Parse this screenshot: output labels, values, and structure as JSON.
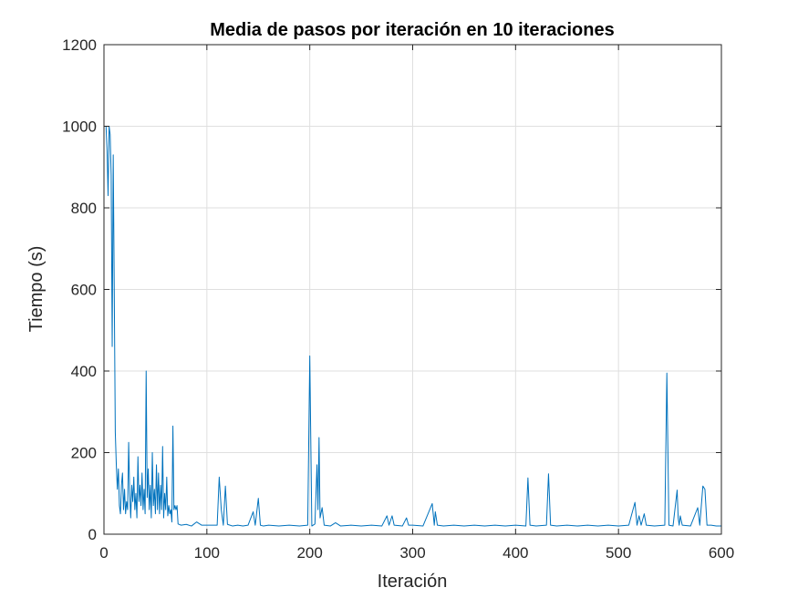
{
  "chart_data": {
    "type": "line",
    "title": "Media de pasos por iteración en 10 iteraciones",
    "xlabel": "Iteración",
    "ylabel": "Tiempo (s)",
    "xlim": [
      0,
      600
    ],
    "ylim": [
      0,
      1200
    ],
    "xticks": [
      "0",
      "100",
      "200",
      "300",
      "400",
      "500",
      "600"
    ],
    "yticks": [
      "0",
      "200",
      "400",
      "600",
      "800",
      "1000",
      "1200"
    ],
    "grid": true,
    "line_color": "#0072bd",
    "series": [
      {
        "points": [
          [
            1,
            1000
          ],
          [
            2,
            1000
          ],
          [
            3,
            940
          ],
          [
            4,
            830
          ],
          [
            5,
            1000
          ],
          [
            6,
            980
          ],
          [
            7,
            880
          ],
          [
            8,
            460
          ],
          [
            9,
            930
          ],
          [
            10,
            600
          ],
          [
            11,
            250
          ],
          [
            12,
            170
          ],
          [
            13,
            110
          ],
          [
            14,
            160
          ],
          [
            15,
            70
          ],
          [
            16,
            50
          ],
          [
            17,
            120
          ],
          [
            18,
            150
          ],
          [
            19,
            60
          ],
          [
            20,
            110
          ],
          [
            21,
            50
          ],
          [
            22,
            80
          ],
          [
            23,
            60
          ],
          [
            24,
            225
          ],
          [
            25,
            100
          ],
          [
            26,
            40
          ],
          [
            27,
            120
          ],
          [
            28,
            80
          ],
          [
            29,
            140
          ],
          [
            30,
            60
          ],
          [
            31,
            100
          ],
          [
            32,
            40
          ],
          [
            33,
            190
          ],
          [
            34,
            80
          ],
          [
            35,
            120
          ],
          [
            36,
            70
          ],
          [
            37,
            150
          ],
          [
            38,
            60
          ],
          [
            39,
            110
          ],
          [
            40,
            50
          ],
          [
            41,
            400
          ],
          [
            42,
            90
          ],
          [
            43,
            160
          ],
          [
            44,
            60
          ],
          [
            45,
            120
          ],
          [
            46,
            40
          ],
          [
            47,
            200
          ],
          [
            48,
            70
          ],
          [
            49,
            110
          ],
          [
            50,
            50
          ],
          [
            51,
            170
          ],
          [
            52,
            60
          ],
          [
            53,
            150
          ],
          [
            54,
            50
          ],
          [
            55,
            120
          ],
          [
            56,
            60
          ],
          [
            57,
            215
          ],
          [
            58,
            40
          ],
          [
            59,
            100
          ],
          [
            60,
            60
          ],
          [
            61,
            140
          ],
          [
            62,
            45
          ],
          [
            63,
            70
          ],
          [
            64,
            50
          ],
          [
            65,
            60
          ],
          [
            66,
            30
          ],
          [
            67,
            265
          ],
          [
            68,
            60
          ],
          [
            69,
            70
          ],
          [
            70,
            60
          ],
          [
            71,
            70
          ],
          [
            72,
            25
          ],
          [
            75,
            22
          ],
          [
            80,
            24
          ],
          [
            85,
            20
          ],
          [
            90,
            30
          ],
          [
            95,
            22
          ],
          [
            100,
            22
          ],
          [
            105,
            22
          ],
          [
            110,
            22
          ],
          [
            112,
            140
          ],
          [
            114,
            60
          ],
          [
            116,
            22
          ],
          [
            118,
            118
          ],
          [
            120,
            24
          ],
          [
            125,
            20
          ],
          [
            130,
            22
          ],
          [
            135,
            20
          ],
          [
            140,
            22
          ],
          [
            145,
            55
          ],
          [
            147,
            22
          ],
          [
            150,
            88
          ],
          [
            152,
            22
          ],
          [
            155,
            20
          ],
          [
            160,
            22
          ],
          [
            170,
            20
          ],
          [
            180,
            22
          ],
          [
            190,
            20
          ],
          [
            198,
            22
          ],
          [
            200,
            437
          ],
          [
            202,
            20
          ],
          [
            205,
            25
          ],
          [
            207,
            170
          ],
          [
            208,
            60
          ],
          [
            209,
            237
          ],
          [
            210,
            40
          ],
          [
            212,
            65
          ],
          [
            214,
            22
          ],
          [
            220,
            20
          ],
          [
            225,
            28
          ],
          [
            230,
            20
          ],
          [
            240,
            22
          ],
          [
            250,
            20
          ],
          [
            260,
            22
          ],
          [
            270,
            20
          ],
          [
            275,
            45
          ],
          [
            277,
            22
          ],
          [
            280,
            45
          ],
          [
            282,
            22
          ],
          [
            290,
            20
          ],
          [
            294,
            40
          ],
          [
            296,
            22
          ],
          [
            300,
            22
          ],
          [
            310,
            20
          ],
          [
            319,
            75
          ],
          [
            321,
            22
          ],
          [
            322,
            55
          ],
          [
            324,
            22
          ],
          [
            330,
            20
          ],
          [
            340,
            22
          ],
          [
            350,
            20
          ],
          [
            360,
            22
          ],
          [
            370,
            20
          ],
          [
            380,
            22
          ],
          [
            390,
            20
          ],
          [
            400,
            22
          ],
          [
            410,
            20
          ],
          [
            412,
            138
          ],
          [
            414,
            22
          ],
          [
            420,
            20
          ],
          [
            430,
            22
          ],
          [
            432,
            148
          ],
          [
            434,
            22
          ],
          [
            440,
            20
          ],
          [
            450,
            22
          ],
          [
            460,
            20
          ],
          [
            470,
            22
          ],
          [
            480,
            20
          ],
          [
            490,
            22
          ],
          [
            500,
            20
          ],
          [
            510,
            22
          ],
          [
            516,
            78
          ],
          [
            518,
            22
          ],
          [
            520,
            45
          ],
          [
            522,
            22
          ],
          [
            525,
            50
          ],
          [
            527,
            22
          ],
          [
            535,
            20
          ],
          [
            545,
            22
          ],
          [
            547,
            395
          ],
          [
            549,
            22
          ],
          [
            553,
            20
          ],
          [
            557,
            108
          ],
          [
            558,
            40
          ],
          [
            559,
            22
          ],
          [
            560,
            45
          ],
          [
            562,
            22
          ],
          [
            570,
            20
          ],
          [
            577,
            65
          ],
          [
            579,
            22
          ],
          [
            582,
            118
          ],
          [
            584,
            110
          ],
          [
            586,
            22
          ],
          [
            590,
            22
          ],
          [
            595,
            20
          ],
          [
            600,
            20
          ]
        ]
      }
    ]
  }
}
